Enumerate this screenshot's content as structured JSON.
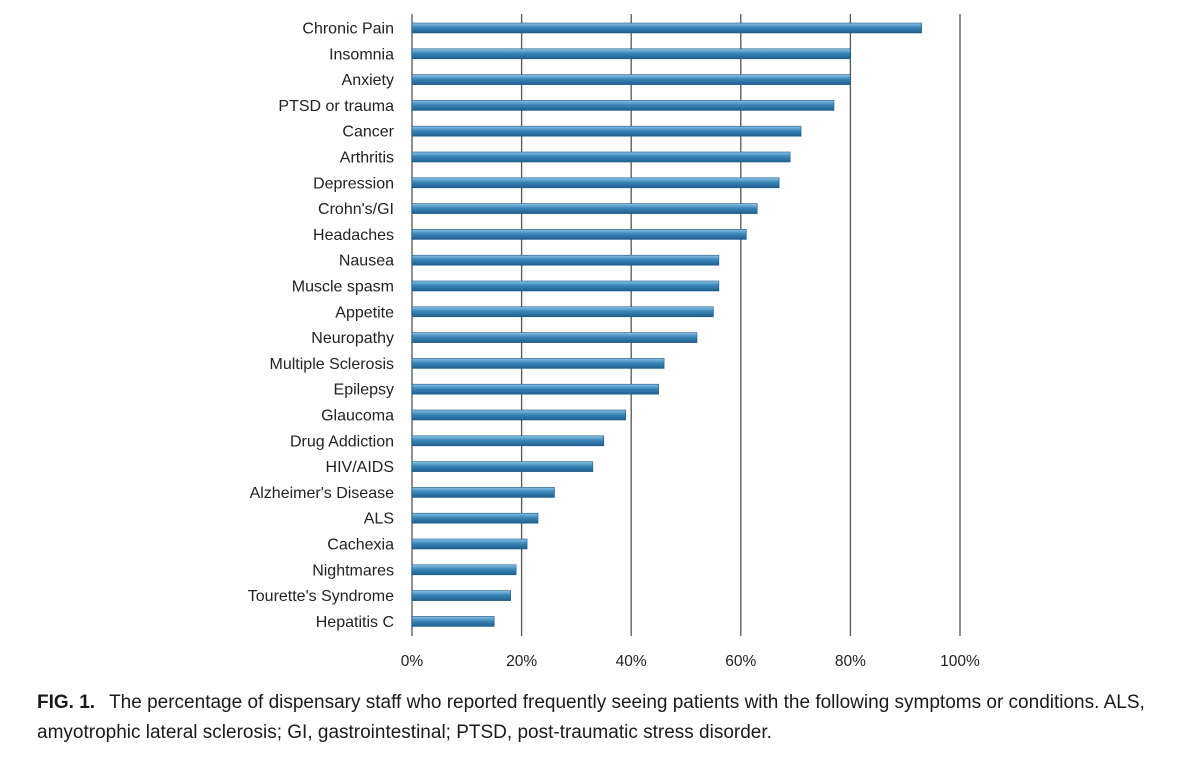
{
  "chart_data": {
    "type": "bar",
    "orientation": "horizontal",
    "categories": [
      "Chronic Pain",
      "Insomnia",
      "Anxiety",
      "PTSD or trauma",
      "Cancer",
      "Arthritis",
      "Depression",
      "Crohn's/GI",
      "Headaches",
      "Nausea",
      "Muscle spasm",
      "Appetite",
      "Neuropathy",
      "Multiple Sclerosis",
      "Epilepsy",
      "Glaucoma",
      "Drug Addiction",
      "HIV/AIDS",
      "Alzheimer's Disease",
      "ALS",
      "Cachexia",
      "Nightmares",
      "Tourette's Syndrome",
      "Hepatitis C"
    ],
    "values": [
      93,
      80,
      80,
      77,
      71,
      69,
      67,
      63,
      61,
      56,
      56,
      55,
      52,
      46,
      45,
      39,
      35,
      33,
      26,
      23,
      21,
      19,
      18,
      15
    ],
    "xlim": [
      0,
      100
    ],
    "xticks": [
      "0%",
      "20%",
      "40%",
      "60%",
      "80%",
      "100%"
    ],
    "grid": true,
    "bar_color": "#3a86b8",
    "title": "",
    "xlabel": "",
    "ylabel": ""
  },
  "caption": {
    "label": "FIG. 1.",
    "text": "The percentage of dispensary staff who reported frequently seeing patients with the following symptoms or conditions. ALS, amyotrophic lateral sclerosis; GI, gastrointestinal; PTSD, post-traumatic stress disorder."
  }
}
